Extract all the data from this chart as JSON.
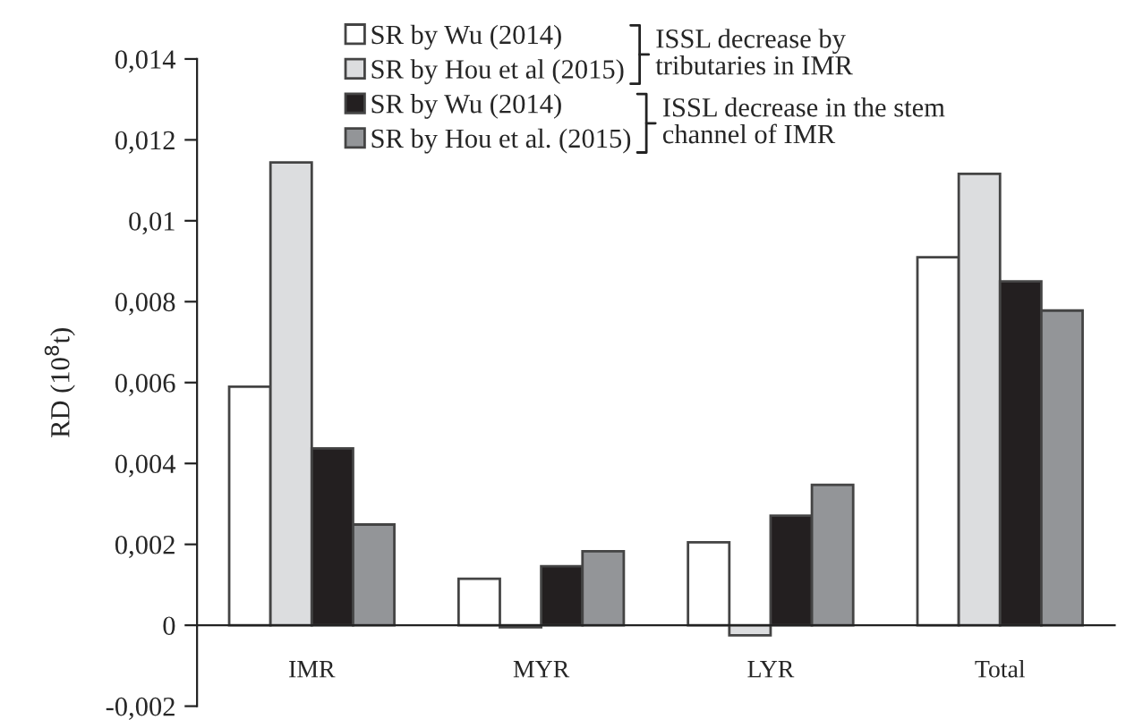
{
  "chart_data": {
    "type": "bar",
    "ylabel": "RD (10$^{8}$t)",
    "categories": [
      "IMR",
      "MYR",
      "LYR",
      "Total"
    ],
    "series": [
      {
        "name": "SR by Wu (2014)",
        "color": "#ffffff",
        "values": [
          0.0059,
          0.00115,
          0.00205,
          0.0091
        ]
      },
      {
        "name": "SR by Hou et al (2015)",
        "color": "#dcdddf",
        "values": [
          0.01144,
          -5e-05,
          -0.00025,
          0.01116
        ]
      },
      {
        "name": "SR by Wu (2014)",
        "color": "#231f20",
        "values": [
          0.00437,
          0.00146,
          0.00271,
          0.0085
        ]
      },
      {
        "name": "SR by Hou et al. (2015)",
        "color": "#939598",
        "values": [
          0.00249,
          0.00183,
          0.00347,
          0.00778
        ]
      }
    ],
    "ylim": [
      -0.002,
      0.014
    ],
    "yticks": [
      {
        "value": -0.002,
        "label": "-0,002"
      },
      0,
      {
        "value": 0.002,
        "label": "0,002"
      },
      {
        "value": 0.004,
        "label": "0,004"
      },
      {
        "value": 0.006,
        "label": "0,006"
      },
      {
        "value": 0.008,
        "label": "0,008"
      },
      {
        "value": 0.01,
        "label": "0,01"
      },
      {
        "value": 0.012,
        "label": "0,012"
      },
      {
        "value": 0.014,
        "label": "0,014"
      }
    ],
    "annotations": [
      "ISSL decrease by\ntributaries in IMR",
      "ISSL decrease in the stem\nchannel of IMR"
    ],
    "legend": "top",
    "grid": false
  }
}
